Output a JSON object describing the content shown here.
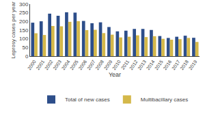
{
  "chart_data": {
    "type": "bar",
    "xlabel": "Year",
    "ylabel": "Leprosy cases per year",
    "categories": [
      "2000",
      "2001",
      "2002",
      "2003",
      "2004",
      "2005",
      "2006",
      "2007",
      "2008",
      "2009",
      "2010",
      "2011",
      "2012",
      "2013",
      "2014",
      "2015",
      "2016",
      "2017",
      "2018",
      "2019"
    ],
    "series": [
      {
        "name": "Total of new cases",
        "color": "#2d4e8a",
        "values": [
          193,
          201,
          245,
          233,
          253,
          251,
          203,
          190,
          195,
          168,
          143,
          147,
          157,
          157,
          151,
          116,
          105,
          112,
          118,
          106
        ]
      },
      {
        "name": "Multibacillary cases",
        "color": "#d4b84a",
        "values": [
          132,
          122,
          174,
          172,
          198,
          202,
          150,
          152,
          133,
          124,
          108,
          112,
          120,
          110,
          115,
          100,
          95,
          98,
          105,
          82
        ]
      }
    ],
    "ylim": [
      0,
      300
    ],
    "yticks": [
      0,
      50,
      100,
      150,
      200,
      250,
      300
    ],
    "grid": false,
    "legend": "bottom"
  }
}
